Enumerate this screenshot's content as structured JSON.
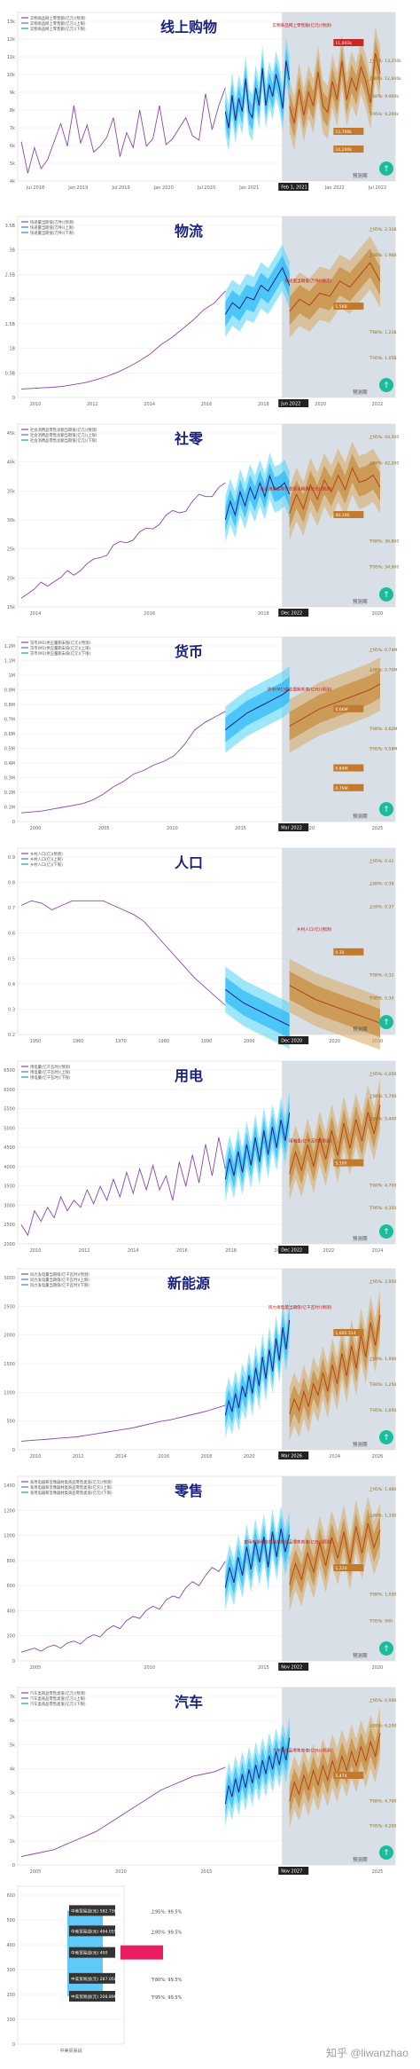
{
  "page": {
    "watermark": "知乎 @liwanzhao"
  },
  "chart_data": [
    {
      "type": "line",
      "title": "线上购物",
      "legend": [
        "实物商品网上零售额(亿元)(预测)",
        "实物商品网上零售额(亿元)(上限)",
        "实物商品网上零售额(亿元)(下限)"
      ],
      "yticks": [
        "4k",
        "5k",
        "6k",
        "7k",
        "8k",
        "9k",
        "10k",
        "11k",
        "12k",
        "13k"
      ],
      "xticks": [
        "Jul 2018",
        "Jan 2019",
        "Jul 2019",
        "Jan 2020",
        "Jul 2020",
        "Jan 2021",
        "Jul 2021",
        "Jan 2022",
        "Jul 2022"
      ],
      "forecast_label": "预测期",
      "date_marker": "Feb 1, 2021",
      "annotations": [
        "实物商品网上零售额(亿元)(预测)",
        "11,002k",
        "上95%: 13,250k",
        "上80%: 12,600k",
        "下80%: 9,900k",
        "下95%: 9,200k",
        "12,700k",
        "10,200k"
      ],
      "series": [
        {
          "name": "历史",
          "values": [
            7.2,
            5.1,
            6.8,
            5.4,
            6.0,
            7.2,
            8.4,
            6.9,
            9.6,
            7.1,
            8.3,
            6.5,
            6.9,
            7.5,
            8.8,
            6.2,
            7.8,
            6.8,
            9.3,
            6.9,
            7.4,
            9.6,
            7.0,
            7.4,
            8.1,
            8.8,
            7.6,
            7.3,
            10.4,
            8.0,
            9.6,
            10.8
          ]
        },
        {
          "name": "预测",
          "values": [
            9.2,
            8.1,
            10.3,
            8.6,
            10.1,
            9.2,
            11.4,
            9.2,
            8.8,
            10.8,
            9.6,
            12.1,
            9.6,
            11.0,
            10.2,
            11.7,
            10.8,
            9.4,
            12.6,
            11.3
          ]
        }
      ]
    },
    {
      "type": "line",
      "title": "物流",
      "legend": [
        "快递量当期值(万件)(预测)",
        "快递量当期值(万件)(上限)",
        "快递量当期值(万件)(下限)"
      ],
      "yticks": [
        "0",
        "0.5B",
        "1B",
        "1.5B",
        "2B",
        "2.5B",
        "3B",
        "3.5B"
      ],
      "xticks": [
        "2010",
        "2012",
        "2014",
        "2016",
        "2018",
        "2020",
        "2022"
      ],
      "forecast_label": "预测期",
      "date_marker": "Jun 2022",
      "annotations": [
        "上95%: 2.31B",
        "上80%: 1.96B",
        "快递量当期值(万件)(预测)",
        "1.58B",
        "下80%: 1.21B",
        "下95%: 1.05B"
      ],
      "series": [
        {
          "name": "历史",
          "values": [
            0.02,
            0.03,
            0.04,
            0.05,
            0.07,
            0.1,
            0.13,
            0.18,
            0.24,
            0.31,
            0.4,
            0.5,
            0.62,
            0.78,
            0.9,
            1.05,
            1.2,
            1.38,
            1.5,
            1.7
          ]
        },
        {
          "name": "预测",
          "values": [
            1.3,
            1.5,
            1.4,
            1.6,
            1.55,
            1.8,
            1.7,
            1.9,
            2.1,
            1.8
          ]
        }
      ]
    },
    {
      "type": "line",
      "title": "社零",
      "legend": [
        "社会消费品零售总额当期值(亿元)(预测)",
        "社会消费品零售总额当期值(亿元)(上限)",
        "社会消费品零售总额当期值(亿元)(下限)"
      ],
      "yticks": [
        "15k",
        "20k",
        "25k",
        "30k",
        "35k",
        "40k",
        "45k"
      ],
      "xticks": [
        "2014",
        "2016",
        "2018",
        "2020"
      ],
      "forecast_label": "预测期",
      "date_marker": "Dec 2022",
      "annotations": [
        "上95%: 44,500",
        "上80%: 42,200",
        "社会消费品零售总额当期值(亿元)(预测)",
        "40,100",
        "下80%: 36,800",
        "下95%: 34,900"
      ],
      "series": [
        {
          "name": "历史",
          "values": [
            16,
            17,
            18,
            19.5,
            18.6,
            19.6,
            20.5,
            22,
            21,
            22,
            23.5,
            24.5,
            24.8,
            25.3,
            27.5,
            28.3,
            28,
            28.6,
            30.4,
            31.2,
            31,
            32,
            34,
            35,
            34.5,
            34.8,
            37,
            38.5,
            38,
            38,
            40,
            41
          ]
        },
        {
          "name": "预测",
          "values": [
            33,
            37,
            34,
            39,
            36,
            40,
            37.5,
            41,
            38,
            42.5,
            39.5,
            40,
            41,
            38.5
          ]
        }
      ]
    },
    {
      "type": "line",
      "title": "货币",
      "legend": [
        "货币(M1)供应量期末值(亿元)(预测)",
        "货币(M1)供应量期末值(亿元)(上限)",
        "货币(M1)供应量期末值(亿元)(下限)"
      ],
      "yticks": [
        "0",
        "0.1M",
        "0.2M",
        "0.3M",
        "0.4M",
        "0.5M",
        "0.6M",
        "0.7M",
        "0.8M",
        "0.9M",
        "1M",
        "1.1M",
        "1.2M"
      ],
      "xticks": [
        "2000",
        "2005",
        "2010",
        "2015",
        "2020",
        "2025"
      ],
      "forecast_label": "预测期",
      "date_marker": "Mar 2022",
      "annotations": [
        "上95%: 0.74M",
        "上80%: 0.70M",
        "货币(M1)供应量期末值(亿元)(预测)",
        "0.66M",
        "下80%: 0.62M",
        "下95%: 0.58M",
        "0.84M",
        "0.79M"
      ],
      "series": [
        {
          "name": "历史",
          "values": [
            0.05,
            0.055,
            0.06,
            0.07,
            0.08,
            0.09,
            0.1,
            0.12,
            0.15,
            0.19,
            0.22,
            0.26,
            0.28,
            0.31,
            0.33,
            0.36,
            0.42,
            0.5,
            0.54,
            0.57,
            0.6
          ]
        },
        {
          "name": "预测",
          "values": [
            0.5,
            0.53,
            0.56,
            0.59,
            0.61,
            0.63,
            0.65,
            0.67,
            0.69,
            0.72
          ]
        }
      ]
    },
    {
      "type": "line",
      "title": "人口",
      "legend": [
        "乡村人口(亿)(预测)",
        "乡村人口(亿)(上限)",
        "乡村人口(亿)(下限)"
      ],
      "yticks": [
        "0.2",
        "0.3",
        "0.4",
        "0.5",
        "0.6",
        "0.7",
        "0.8",
        "0.9"
      ],
      "xticks": [
        "1950",
        "1960",
        "1970",
        "1980",
        "1990",
        "2000",
        "2010",
        "2020",
        "2030"
      ],
      "forecast_label": "预测期",
      "date_marker": "Dec 2020",
      "annotations": [
        "上95%: 0.41",
        "上80%: 0.39",
        "上50%: 0.37",
        "乡村人口(亿)(预测)",
        "0.35",
        "下80%: 0.32",
        "下95%: 0.30"
      ],
      "series": [
        {
          "name": "历史",
          "values": [
            0.82,
            0.84,
            0.83,
            0.8,
            0.82,
            0.84,
            0.84,
            0.84,
            0.84,
            0.82,
            0.8,
            0.78,
            0.75,
            0.7,
            0.65,
            0.6,
            0.55,
            0.5,
            0.46,
            0.42,
            0.38
          ]
        },
        {
          "name": "预测",
          "values": [
            0.45,
            0.42,
            0.39,
            0.37,
            0.35,
            0.33,
            0.31,
            0.29
          ]
        }
      ]
    },
    {
      "type": "line",
      "title": "用电",
      "legend": [
        "用电量(亿千瓦时)(预测)",
        "用电量(亿千瓦时)(上限)",
        "用电量(亿千瓦时)(下限)"
      ],
      "yticks": [
        "2000",
        "2500",
        "3000",
        "3500",
        "4000",
        "4500",
        "5000",
        "5500",
        "6000",
        "6500"
      ],
      "xticks": [
        "2010",
        "2012",
        "2014",
        "2016",
        "2018",
        "2020",
        "2022",
        "2024"
      ],
      "forecast_label": "预测期",
      "date_marker": "Dec 2022",
      "annotations": [
        "上95%: 6,050",
        "上80%: 5,700",
        "上50%: 5,400",
        "用电量(亿千瓦时)(预测)",
        "5,100",
        "下80%: 4,700",
        "下95%: 4,350"
      ],
      "series": [
        {
          "name": "历史",
          "values": [
            2500,
            2200,
            2900,
            2600,
            3000,
            2700,
            3300,
            2900,
            3200,
            3000,
            3500,
            3100,
            3600,
            3200,
            3800,
            3300,
            4000,
            3400,
            4100,
            3500,
            4200,
            3500,
            3900,
            3200,
            4300,
            3600,
            4500,
            3700,
            4800,
            3900,
            5000,
            4100
          ]
        },
        {
          "name": "预测",
          "values": [
            3800,
            4400,
            3900,
            4600,
            4000,
            4800,
            4200,
            5000,
            4300,
            5200,
            4500,
            5300,
            4700,
            5500,
            4900,
            5700
          ]
        }
      ]
    },
    {
      "type": "line",
      "title": "新能源",
      "legend": [
        "风力发电量当期值(亿千瓦时)(预测)",
        "风力发电量当期值(亿千瓦时)(上限)",
        "风力发电量当期值(亿千瓦时)(下限)"
      ],
      "yticks": [
        "0",
        "500",
        "1000",
        "1500",
        "2000",
        "2500",
        "3000"
      ],
      "xticks": [
        "2010",
        "2012",
        "2014",
        "2016",
        "2018",
        "2020",
        "2022",
        "2024",
        "2026"
      ],
      "forecast_label": "预测期",
      "date_marker": "Mar 2026",
      "annotations": [
        "上95%: 2,950",
        "风力发电量当期值(亿千瓦时)(预测)",
        "1,605.514",
        "上80%: 1,900",
        "下80%: 1,250",
        "下95%: 1,000"
      ],
      "series": [
        {
          "name": "历史",
          "values": [
            50,
            60,
            70,
            80,
            90,
            100,
            110,
            130,
            150,
            170,
            190,
            210,
            230,
            260,
            290,
            320,
            340,
            370,
            400,
            430,
            460,
            500,
            540
          ]
        },
        {
          "name": "预测",
          "values": [
            400,
            600,
            450,
            700,
            500,
            800,
            650,
            950,
            700,
            1050,
            800,
            1200,
            900,
            1300,
            1000,
            1450,
            1150,
            1600,
            1300,
            1700
          ]
        }
      ]
    },
    {
      "type": "line",
      "title": "零售",
      "legend": [
        "家用电器和音像器材类商品零售类值(亿元)(预测)",
        "家用电器和音像器材类商品零售类值(亿元)(上限)",
        "家用电器和音像器材类商品零售类值(亿元)(下限)"
      ],
      "yticks": [
        "0",
        "200",
        "400",
        "600",
        "800",
        "1000",
        "1200",
        "1400"
      ],
      "xticks": [
        "2005",
        "2010",
        "2015",
        "2020"
      ],
      "forecast_label": "预测期",
      "date_marker": "Nov 2022",
      "annotations": [
        "上95%: 1,480",
        "上80%: 1,330",
        "家用电器和音像器材类商品零售类值(亿元)(预测)",
        "1,220",
        "下80%: 1,050",
        "下95%: 900"
      ],
      "series": [
        {
          "name": "历史",
          "values": [
            70,
            90,
            110,
            80,
            120,
            140,
            110,
            160,
            180,
            150,
            210,
            240,
            220,
            290,
            330,
            300,
            380,
            420,
            400,
            480,
            520,
            490,
            580,
            620,
            600,
            700,
            760,
            720,
            820,
            900,
            860,
            960
          ]
        },
        {
          "name": "预测",
          "values": [
            700,
            900,
            750,
            1000,
            820,
            1100,
            880,
            1150,
            950,
            1200,
            900,
            1250,
            1000,
            1280,
            1050,
            1220
          ]
        }
      ]
    },
    {
      "type": "line",
      "title": "汽车",
      "legend": [
        "汽车类商品零售类值(亿元)(预测)",
        "汽车类商品零售类值(亿元)(上限)",
        "汽车类商品零售类值(亿元)(下限)"
      ],
      "yticks": [
        "0",
        "1k",
        "2k",
        "3k",
        "4k",
        "5k",
        "6k",
        "7k"
      ],
      "xticks": [
        "2005",
        "2010",
        "2015",
        "2020",
        "2025"
      ],
      "forecast_label": "预测期",
      "date_marker": "Nov 2027",
      "annotations": [
        "上95%: 6,900",
        "上80%: 6,200",
        "汽车类商品零售类值(亿元)(预测)",
        "5,474",
        "下80%: 4,700",
        "下95%: 4,200"
      ],
      "series": [
        {
          "name": "历史",
          "values": [
            300,
            400,
            500,
            600,
            800,
            1000,
            1200,
            1400,
            1700,
            2000,
            2300,
            2600,
            2900,
            3200,
            3400,
            3600,
            3800,
            3900,
            4000,
            4200
          ]
        },
        {
          "name": "预测",
          "values": [
            2600,
            3400,
            2900,
            3700,
            3100,
            3900,
            3300,
            4100,
            3500,
            4300,
            3700,
            4500,
            3900,
            4700,
            4100,
            4900,
            4300,
            5100,
            4500,
            5474
          ]
        }
      ]
    },
    {
      "type": "bar",
      "title": "",
      "legend": [],
      "yticks": [
        "0",
        "100",
        "200",
        "300",
        "400",
        "500",
        "600"
      ],
      "xticks": [
        "中美贸易战"
      ],
      "annotations": [
        "中美贸易战(元) 582.7364",
        "上95%: 99.5%",
        "中美贸易战(元) 494.0556",
        "上80%: 99.5%",
        "中美贸易战(元) 400",
        "中美贸易战(元) 287.0508",
        "下80%: 99.5%",
        "中美贸易战(元) 208.896",
        "下95%: 99.5%"
      ],
      "values": [
        582.7364,
        494.0556,
        400,
        287.0508,
        208.896
      ]
    }
  ]
}
